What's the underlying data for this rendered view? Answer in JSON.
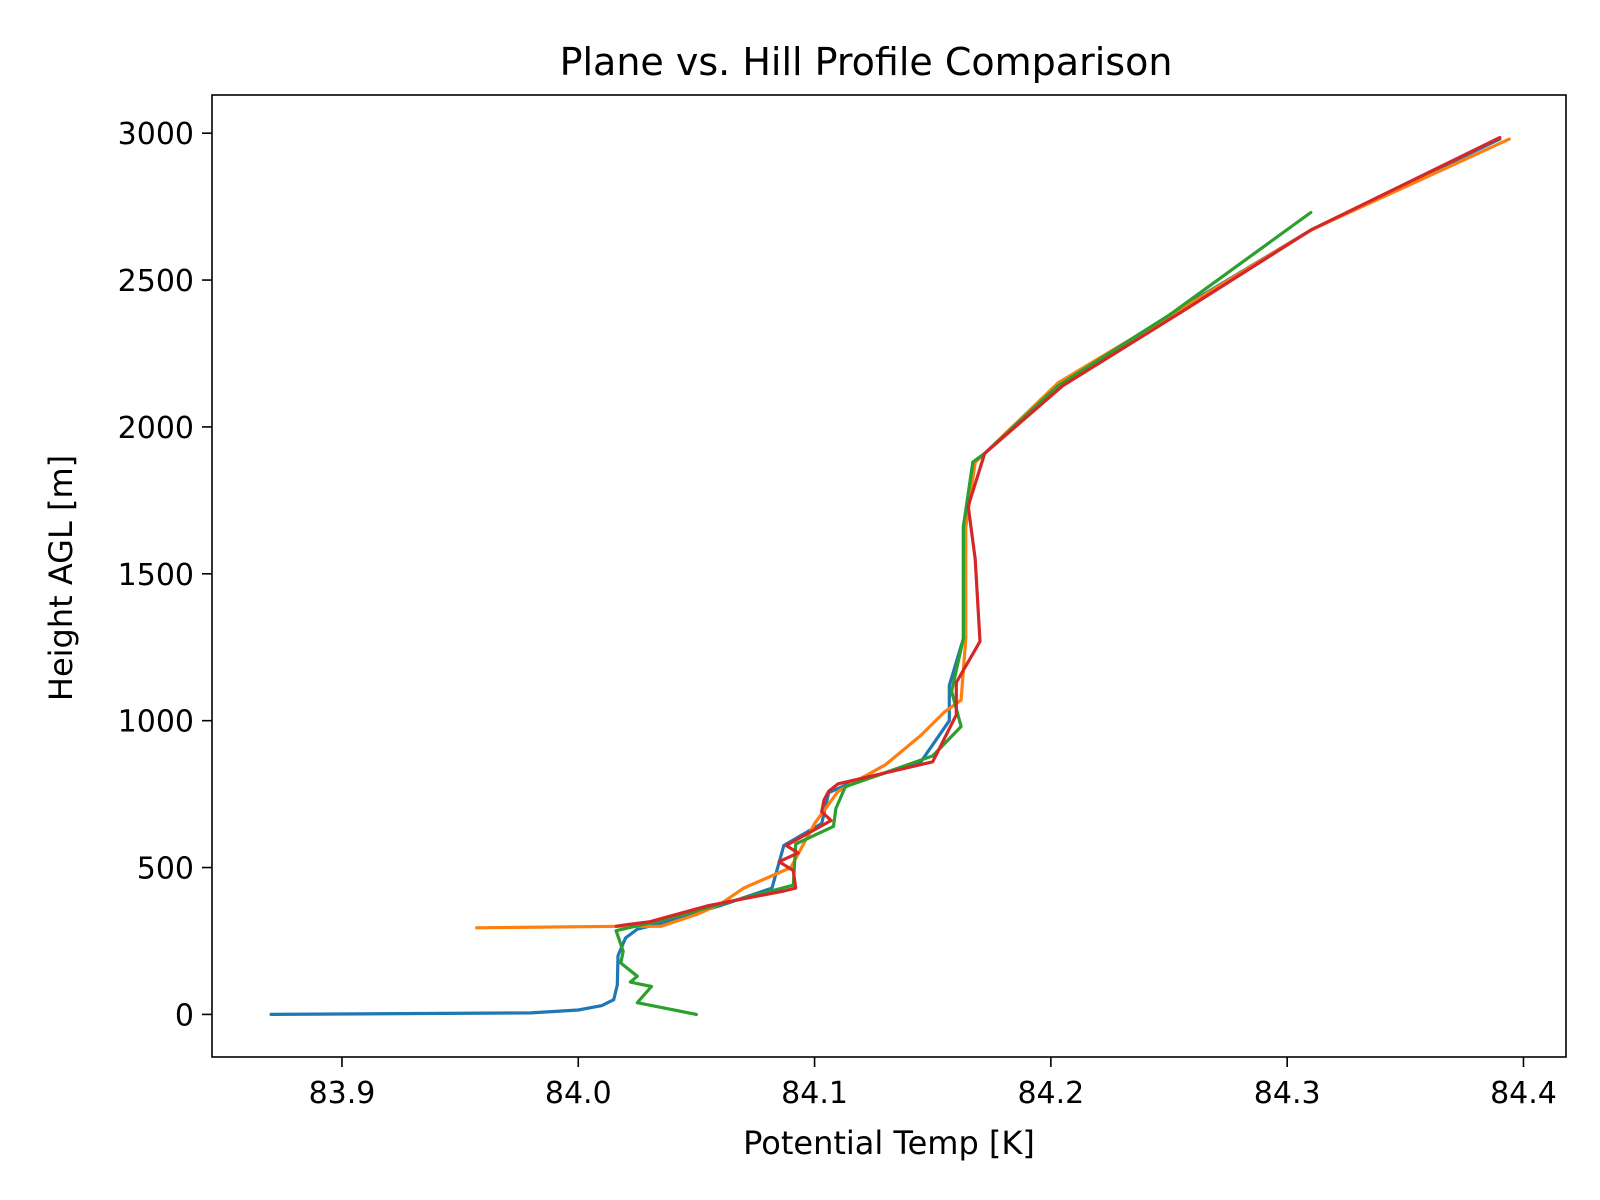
{
  "chart_data": {
    "type": "line",
    "title": "Plane vs. Hill Profile Comparison",
    "xlabel": "Potential Temp [K]",
    "ylabel": "Height AGL [m]",
    "xlim": [
      83.845,
      84.418
    ],
    "ylim": [
      -145,
      3130
    ],
    "xticks": [
      {
        "value": 83.9,
        "label": "83.9"
      },
      {
        "value": 84.0,
        "label": "84.0"
      },
      {
        "value": 84.1,
        "label": "84.1"
      },
      {
        "value": 84.2,
        "label": "84.2"
      },
      {
        "value": 84.3,
        "label": "84.3"
      },
      {
        "value": 84.4,
        "label": "84.4"
      }
    ],
    "yticks": [
      {
        "value": 0,
        "label": "0"
      },
      {
        "value": 500,
        "label": "500"
      },
      {
        "value": 1000,
        "label": "1000"
      },
      {
        "value": 1500,
        "label": "1500"
      },
      {
        "value": 2000,
        "label": "2000"
      },
      {
        "value": 2500,
        "label": "2500"
      },
      {
        "value": 3000,
        "label": "3000"
      }
    ],
    "grid": false,
    "legend": false,
    "series": [
      {
        "color": "#1f77b4",
        "points": [
          [
            83.87,
            0
          ],
          [
            83.98,
            5
          ],
          [
            84.0,
            15
          ],
          [
            84.01,
            30
          ],
          [
            84.015,
            50
          ],
          [
            84.0165,
            100
          ],
          [
            84.0168,
            200
          ],
          [
            84.02,
            260
          ],
          [
            84.025,
            290
          ],
          [
            84.035,
            310
          ],
          [
            84.06,
            370
          ],
          [
            84.082,
            430
          ],
          [
            84.087,
            575
          ],
          [
            84.103,
            650
          ],
          [
            84.106,
            755
          ],
          [
            84.113,
            780
          ],
          [
            84.145,
            860
          ],
          [
            84.157,
            1000
          ],
          [
            84.157,
            1120
          ],
          [
            84.163,
            1280
          ],
          [
            84.163,
            1660
          ],
          [
            84.167,
            1880
          ],
          [
            84.172,
            1910
          ],
          [
            84.203,
            2140
          ],
          [
            84.25,
            2380
          ],
          [
            84.31,
            2670
          ],
          [
            84.39,
            2980
          ]
        ]
      },
      {
        "color": "#ff7f0e",
        "points": [
          [
            83.957,
            295
          ],
          [
            84.017,
            300
          ],
          [
            84.035,
            300
          ],
          [
            84.05,
            340
          ],
          [
            84.06,
            375
          ],
          [
            84.07,
            430
          ],
          [
            84.09,
            500
          ],
          [
            84.1,
            650
          ],
          [
            84.11,
            760
          ],
          [
            84.13,
            850
          ],
          [
            84.145,
            950
          ],
          [
            84.155,
            1030
          ],
          [
            84.162,
            1070
          ],
          [
            84.164,
            1280
          ],
          [
            84.164,
            1660
          ],
          [
            84.168,
            1880
          ],
          [
            84.172,
            1910
          ],
          [
            84.203,
            2150
          ],
          [
            84.255,
            2400
          ],
          [
            84.31,
            2670
          ],
          [
            84.394,
            2980
          ]
        ]
      },
      {
        "color": "#2ca02c",
        "points": [
          [
            84.05,
            0
          ],
          [
            84.025,
            40
          ],
          [
            84.031,
            95
          ],
          [
            84.022,
            110
          ],
          [
            84.025,
            130
          ],
          [
            84.018,
            175
          ],
          [
            84.019,
            215
          ],
          [
            84.016,
            285
          ],
          [
            84.035,
            320
          ],
          [
            84.06,
            375
          ],
          [
            84.091,
            440
          ],
          [
            84.092,
            580
          ],
          [
            84.108,
            640
          ],
          [
            84.109,
            700
          ],
          [
            84.113,
            775
          ],
          [
            84.15,
            880
          ],
          [
            84.162,
            980
          ],
          [
            84.158,
            1100
          ],
          [
            84.163,
            1280
          ],
          [
            84.163,
            1660
          ],
          [
            84.167,
            1880
          ],
          [
            84.172,
            1910
          ],
          [
            84.203,
            2140
          ],
          [
            84.25,
            2380
          ],
          [
            84.31,
            2730
          ]
        ]
      },
      {
        "color": "#d62728",
        "points": [
          [
            84.016,
            300
          ],
          [
            84.02,
            305
          ],
          [
            84.03,
            315
          ],
          [
            84.055,
            370
          ],
          [
            84.087,
            420
          ],
          [
            84.092,
            430
          ],
          [
            84.091,
            490
          ],
          [
            84.085,
            520
          ],
          [
            84.093,
            550
          ],
          [
            84.088,
            575
          ],
          [
            84.107,
            660
          ],
          [
            84.103,
            690
          ],
          [
            84.104,
            730
          ],
          [
            84.106,
            760
          ],
          [
            84.11,
            785
          ],
          [
            84.15,
            860
          ],
          [
            84.16,
            1020
          ],
          [
            84.16,
            1130
          ],
          [
            84.17,
            1270
          ],
          [
            84.168,
            1550
          ],
          [
            84.165,
            1730
          ],
          [
            84.172,
            1910
          ],
          [
            84.205,
            2140
          ],
          [
            84.255,
            2390
          ],
          [
            84.31,
            2670
          ],
          [
            84.39,
            2985
          ]
        ]
      }
    ]
  }
}
